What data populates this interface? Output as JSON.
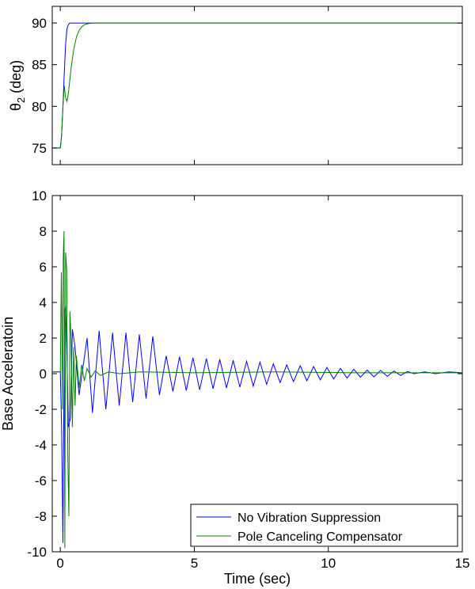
{
  "chart_data": [
    {
      "type": "line",
      "panel": "top",
      "ylabel": {
        "base": "θ",
        "sub": "2",
        "rest": " (deg)"
      },
      "xlim": [
        -0.3,
        15
      ],
      "ylim": [
        73,
        92
      ],
      "y_ticks": [
        75,
        80,
        85,
        90
      ],
      "x_ticks": [
        0,
        5,
        10,
        15
      ],
      "show_x_tick_labels": false,
      "grid": false,
      "series": [
        {
          "color": "#0000ff",
          "x": [
            -0.3,
            0.0,
            0.05,
            0.1,
            0.15,
            0.2,
            0.25,
            0.3,
            0.35,
            0.4,
            0.5,
            0.6,
            15
          ],
          "y": [
            75,
            75,
            76.5,
            80,
            84,
            87.5,
            89.3,
            89.8,
            90.0,
            90.0,
            90.0,
            90.0,
            90.0
          ]
        },
        {
          "color": "#008000",
          "x": [
            -0.3,
            0.0,
            0.05,
            0.1,
            0.15,
            0.2,
            0.25,
            0.3,
            0.35,
            0.4,
            0.5,
            0.6,
            0.7,
            0.8,
            0.9,
            1.0,
            1.2,
            1.5,
            15
          ],
          "y": [
            75,
            75,
            76.5,
            80,
            82.5,
            81.0,
            80.6,
            81.5,
            83.0,
            84.5,
            86.8,
            88.3,
            89.1,
            89.55,
            89.8,
            89.9,
            90.0,
            90.0,
            90.0
          ]
        }
      ]
    },
    {
      "type": "line",
      "panel": "bottom",
      "xlabel": "Time (sec)",
      "ylabel": "Base Acceleratoin",
      "xlim": [
        -0.3,
        15
      ],
      "ylim": [
        -10,
        10
      ],
      "y_ticks": [
        -10,
        -8,
        -6,
        -4,
        -2,
        0,
        2,
        4,
        6,
        8,
        10
      ],
      "x_ticks": [
        0,
        5,
        10,
        15
      ],
      "grid": false,
      "legend": {
        "position": "bottom-right",
        "entries": [
          {
            "label": "No Vibration Suppression",
            "color": "#0000ff"
          },
          {
            "label": "Pole Canceling Compensator",
            "color": "#008000"
          }
        ]
      },
      "series": [
        {
          "name": "No Vibration Suppression",
          "color": "#0000ff",
          "x": [
            -0.3,
            0.0,
            0.05,
            0.1,
            0.13,
            0.16,
            0.2,
            0.25,
            0.3,
            0.38,
            0.45,
            0.55,
            0.7,
            0.85,
            1.0,
            1.2,
            1.45,
            1.7,
            1.95,
            2.2,
            2.45,
            2.7,
            2.95,
            3.2,
            3.45,
            3.7,
            3.95,
            4.2,
            4.45,
            4.7,
            4.95,
            5.2,
            5.45,
            5.7,
            5.95,
            6.2,
            6.45,
            6.7,
            6.95,
            7.2,
            7.45,
            7.7,
            7.95,
            8.2,
            8.45,
            8.7,
            8.95,
            9.2,
            9.45,
            9.7,
            9.95,
            10.2,
            10.45,
            10.7,
            10.95,
            11.2,
            11.45,
            11.7,
            11.95,
            12.2,
            12.45,
            12.7,
            12.95,
            13.2,
            13.6,
            14.0,
            14.5,
            15.0
          ],
          "y": [
            0.1,
            0.1,
            -3.0,
            -9.5,
            -2.0,
            3.5,
            3.8,
            1.0,
            -3.0,
            -2.5,
            2.5,
            1.5,
            -1.2,
            0.4,
            2.0,
            -2.2,
            2.4,
            -2.0,
            2.3,
            -1.8,
            2.3,
            -1.6,
            2.2,
            -1.4,
            2.1,
            -1.2,
            1.0,
            -1.0,
            0.95,
            -0.95,
            0.9,
            -0.9,
            0.85,
            -0.85,
            0.8,
            -0.8,
            0.75,
            -0.75,
            0.7,
            -0.7,
            0.65,
            -0.6,
            0.55,
            -0.5,
            0.5,
            -0.45,
            0.45,
            -0.4,
            0.4,
            -0.35,
            0.35,
            -0.3,
            0.3,
            -0.25,
            0.25,
            -0.2,
            0.2,
            -0.18,
            0.18,
            -0.15,
            0.15,
            -0.1,
            0.12,
            0.0,
            0.1,
            0.0,
            0.1,
            0.05
          ]
        },
        {
          "name": "Pole Canceling Compensator",
          "color": "#008000",
          "x": [
            -0.3,
            0.0,
            0.04,
            0.08,
            0.11,
            0.14,
            0.17,
            0.2,
            0.24,
            0.28,
            0.32,
            0.36,
            0.4,
            0.45,
            0.5,
            0.55,
            0.6,
            0.7,
            0.8,
            0.9,
            1.0,
            1.15,
            1.3,
            1.5,
            1.8,
            2.2,
            3.0,
            5.0,
            8.0,
            11.0,
            15.0
          ],
          "y": [
            0.1,
            0.1,
            5.7,
            -2.0,
            6.5,
            8.0,
            -9.8,
            6.8,
            5.8,
            -4.5,
            -8.0,
            3.5,
            2.0,
            -3.0,
            1.5,
            -1.8,
            1.0,
            -0.8,
            0.5,
            -0.4,
            0.3,
            -0.2,
            0.15,
            -0.1,
            0.1,
            0.0,
            0.1,
            0.05,
            0.1,
            0.05,
            0.05
          ]
        }
      ]
    }
  ]
}
